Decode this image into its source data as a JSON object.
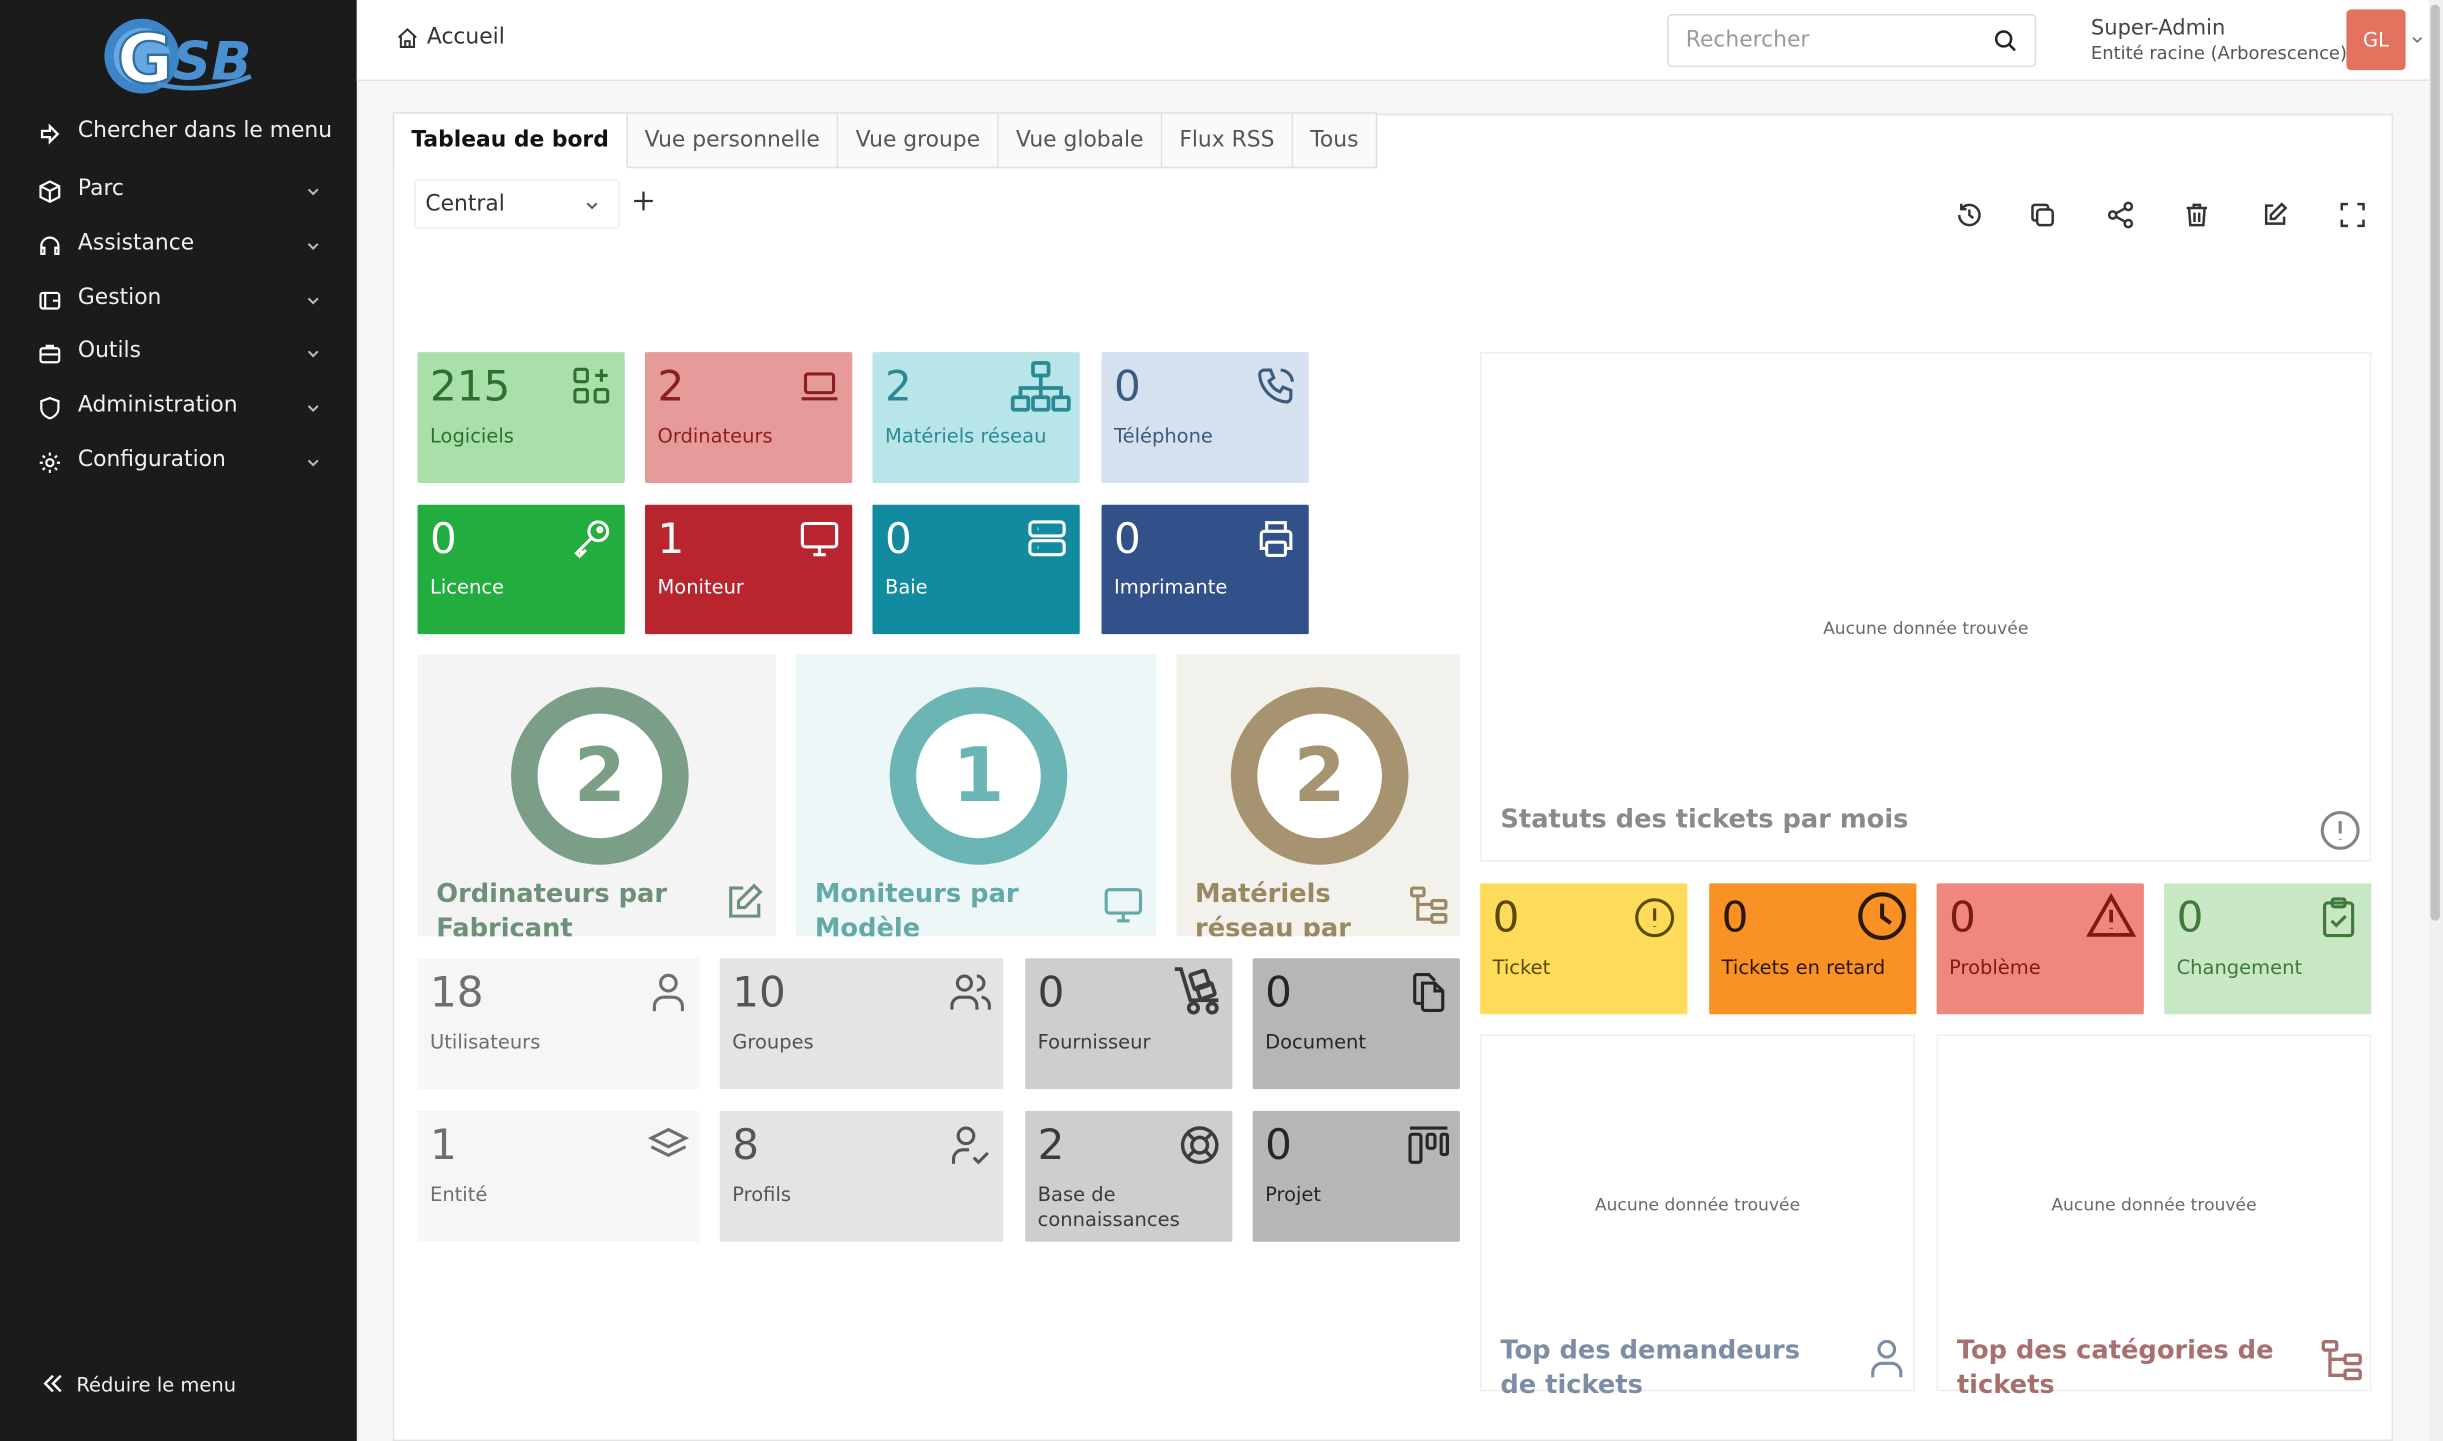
{
  "sidebar": {
    "search_menu": "Chercher dans le menu",
    "items": [
      {
        "label": "Parc",
        "icon": "cube-icon"
      },
      {
        "label": "Assistance",
        "icon": "headset-icon"
      },
      {
        "label": "Gestion",
        "icon": "wallet-icon"
      },
      {
        "label": "Outils",
        "icon": "briefcase-icon"
      },
      {
        "label": "Administration",
        "icon": "shield-icon"
      },
      {
        "label": "Configuration",
        "icon": "gear-icon"
      }
    ],
    "collapse": "Réduire le menu"
  },
  "topbar": {
    "breadcrumb": "Accueil",
    "search_placeholder": "Rechercher",
    "user_name": "Super-Admin",
    "user_entity": "Entité racine (Arborescence)",
    "avatar_initials": "GL"
  },
  "tabs": [
    "Tableau de bord",
    "Vue personnelle",
    "Vue groupe",
    "Vue globale",
    "Flux RSS",
    "Tous"
  ],
  "active_tab": "Tableau de bord",
  "dashboard_select": "Central",
  "colors": {
    "sidebar_bg": "#1b1b1b",
    "avatar_bg": "#e3725f"
  },
  "cards_row1": [
    {
      "value": "215",
      "label": "Logiciels",
      "icon": "apps-add-icon",
      "bg": "#a9dfa9",
      "fg": "#2f6f2f"
    },
    {
      "value": "2",
      "label": "Ordinateurs",
      "icon": "laptop-icon",
      "bg": "#e79a9a",
      "fg": "#8a1f1f"
    },
    {
      "value": "2",
      "label": "Matériels réseau",
      "icon": "network-icon",
      "bg": "#b8e6e8",
      "fg": "#2a8a93"
    },
    {
      "value": "0",
      "label": "Téléphone",
      "icon": "phone-icon",
      "bg": "#d5e1ee",
      "fg": "#3a5a80"
    }
  ],
  "cards_row2": [
    {
      "value": "0",
      "label": "Licence",
      "icon": "key-icon",
      "bg": "#23ad3e",
      "fg": "#ffffff"
    },
    {
      "value": "1",
      "label": "Moniteur",
      "icon": "monitor-icon",
      "bg": "#b8252f",
      "fg": "#ffffff"
    },
    {
      "value": "0",
      "label": "Baie",
      "icon": "server-icon",
      "bg": "#128a9f",
      "fg": "#ffffff"
    },
    {
      "value": "0",
      "label": "Imprimante",
      "icon": "printer-icon",
      "bg": "#32508a",
      "fg": "#ffffff"
    }
  ],
  "big_cards": [
    {
      "value": "2",
      "title": "Ordinateurs par Fabricant",
      "icon": "edit-icon",
      "bg": "#f4f4f4",
      "circle": "#7a9e86",
      "fg": "#6d9079"
    },
    {
      "value": "1",
      "title": "Moniteurs par Modèle",
      "icon": "monitor-icon",
      "bg": "#eef7f7",
      "circle": "#6bb6b4",
      "fg": "#62a9a7"
    },
    {
      "value": "2",
      "title": "Matériels réseau par Statut",
      "icon": "tree-icon",
      "bg": "#f3f1ec",
      "circle": "#a69370",
      "fg": "#9a8863"
    }
  ],
  "cards_row3": [
    {
      "value": "18",
      "label": "Utilisateurs",
      "icon": "user-icon",
      "bg": "#f6f6f6",
      "fg": "#6e6e6e"
    },
    {
      "value": "10",
      "label": "Groupes",
      "icon": "users-icon",
      "bg": "#e4e4e4",
      "fg": "#555555"
    },
    {
      "value": "0",
      "label": "Fournisseur",
      "icon": "dolly-icon",
      "bg": "#cecece",
      "fg": "#3c3c3c"
    },
    {
      "value": "0",
      "label": "Document",
      "icon": "files-icon",
      "bg": "#b6b6b6",
      "fg": "#262626"
    }
  ],
  "cards_row4": [
    {
      "value": "1",
      "label": "Entité",
      "icon": "stack-icon",
      "bg": "#f6f6f6",
      "fg": "#6e6e6e"
    },
    {
      "value": "8",
      "label": "Profils",
      "icon": "user-check-icon",
      "bg": "#e4e4e4",
      "fg": "#555555"
    },
    {
      "value": "2",
      "label": "Base de connaissances",
      "icon": "lifebuoy-icon",
      "bg": "#cecece",
      "fg": "#3c3c3c"
    },
    {
      "value": "0",
      "label": "Projet",
      "icon": "kanban-icon",
      "bg": "#b6b6b6",
      "fg": "#262626"
    }
  ],
  "ticket_cards": [
    {
      "value": "0",
      "label": "Ticket",
      "icon": "alert-circle-icon",
      "bg": "#fedc5a",
      "fg": "#5a4a00"
    },
    {
      "value": "0",
      "label": "Tickets en retard",
      "icon": "clock-icon",
      "bg": "#fa9124",
      "fg": "#2a1700"
    },
    {
      "value": "0",
      "label": "Problème",
      "icon": "warning-icon",
      "bg": "#f0877c",
      "fg": "#7a1b14"
    },
    {
      "value": "0",
      "label": "Changement",
      "icon": "clipboard-check-icon",
      "bg": "#c7e7c5",
      "fg": "#3e7a3b"
    }
  ],
  "panels": {
    "statuts": {
      "title": "Statuts des tickets par mois",
      "empty": "Aucune donnée trouvée",
      "icon": "alert-circle-icon"
    },
    "demandeurs": {
      "title": "Top des demandeurs de tickets",
      "empty": "Aucune donnée trouvée",
      "icon": "user-icon"
    },
    "categories": {
      "title": "Top des catégories de tickets",
      "empty": "Aucune donnée trouvée",
      "icon": "tree-icon"
    }
  }
}
